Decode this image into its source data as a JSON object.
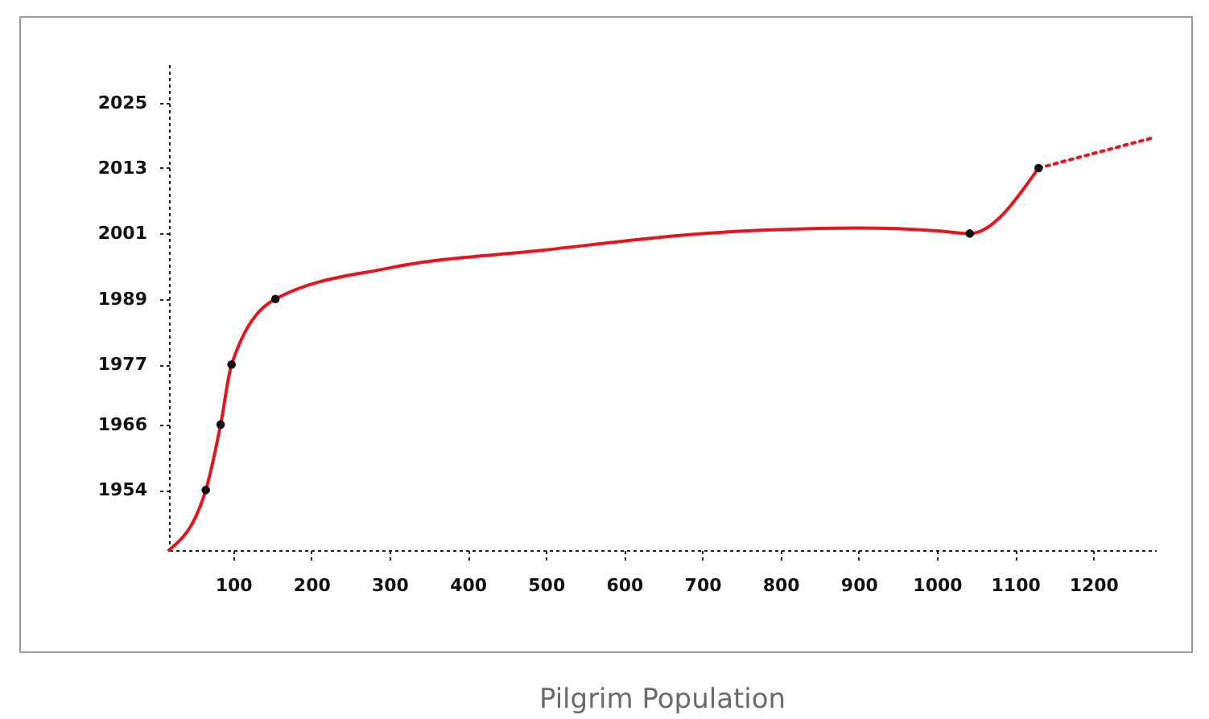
{
  "chart_data": {
    "type": "line",
    "title": "Pilgrim Population",
    "xlim": [
      18,
      1280
    ],
    "xticks": [
      100,
      200,
      300,
      400,
      500,
      600,
      700,
      800,
      900,
      1000,
      1100,
      1200
    ],
    "ylim": [
      1943,
      2032
    ],
    "yticks": [
      1954,
      1966,
      1977,
      1989,
      2001,
      2013,
      2025
    ],
    "grid": false,
    "series": [
      {
        "type": "line",
        "color": "#e8141c",
        "line_style": "solid",
        "x": [
          18,
          65,
          84,
          98,
          154,
          300,
          500,
          700,
          900,
          1000,
          1042,
          1130
        ],
        "values": [
          1943,
          1954,
          1966,
          1977,
          1989,
          1994.7,
          1998,
          2001,
          2002,
          2001.5,
          2001,
          2013
        ]
      },
      {
        "type": "line",
        "color": "#e8141c",
        "line_style": "dotted",
        "x": [
          1130,
          1275
        ],
        "values": [
          2013,
          2018.5
        ]
      },
      {
        "type": "scatter",
        "color": "#111111",
        "marker": "circle",
        "x": [
          65,
          84,
          98,
          154,
          1042,
          1130
        ],
        "values": [
          1954,
          1966,
          1977,
          1989,
          2001,
          2013
        ]
      }
    ]
  }
}
